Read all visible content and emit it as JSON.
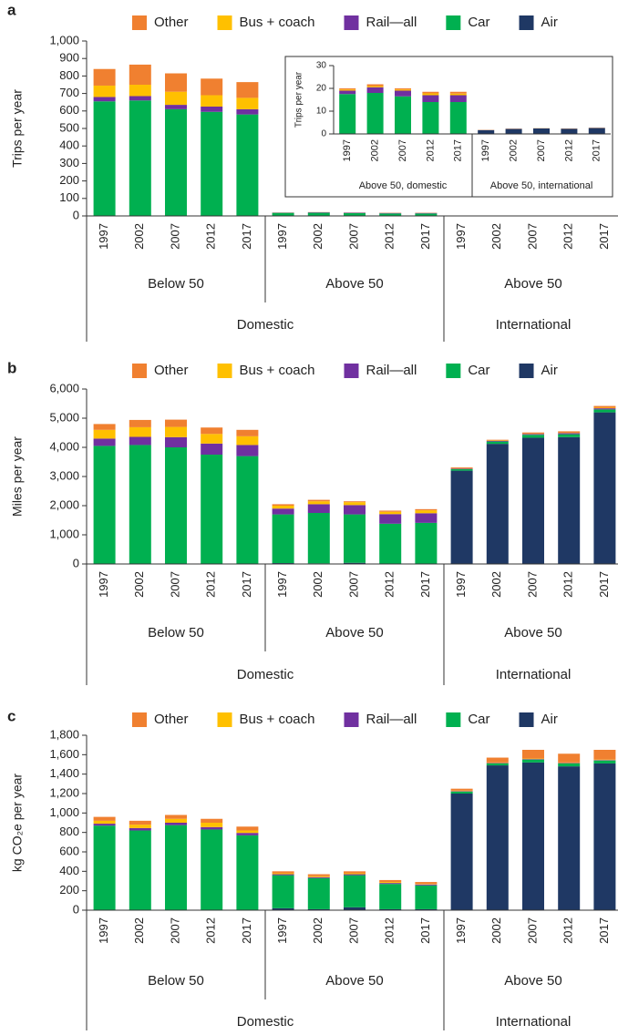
{
  "chart_data": [
    {
      "type": "bar",
      "panel": "a",
      "ylabel": "Trips per year",
      "categories": [
        "1997",
        "2002",
        "2007",
        "2012",
        "2017",
        "1997",
        "2002",
        "2007",
        "2012",
        "2017",
        "1997",
        "2002",
        "2007",
        "2012",
        "2017"
      ],
      "groups": [
        "Below 50",
        "Above 50",
        "Above 50"
      ],
      "supergroups": [
        "Domestic",
        "International"
      ],
      "ylim": [
        0,
        1000
      ],
      "yticks": [
        0,
        100,
        200,
        300,
        400,
        500,
        600,
        700,
        800,
        900,
        {
          "value": 1000,
          "label": "1,000"
        }
      ],
      "series": [
        {
          "name": "Air",
          "color": "#1f3864",
          "values": [
            0,
            0,
            0,
            0,
            0,
            0,
            0,
            0,
            0,
            0,
            1.7,
            2.2,
            2.4,
            2.3,
            2.6
          ]
        },
        {
          "name": "Car",
          "color": "#00b050",
          "values": [
            655,
            660,
            610,
            595,
            580,
            17.5,
            18,
            16.5,
            14,
            14,
            0,
            0,
            0,
            0,
            0
          ]
        },
        {
          "name": "Rail—all",
          "color": "#7030a0",
          "values": [
            25,
            25,
            25,
            30,
            30,
            1.5,
            2.5,
            2.5,
            3,
            3,
            0,
            0,
            0,
            0,
            0
          ]
        },
        {
          "name": "Bus + coach",
          "color": "#ffc000",
          "values": [
            65,
            65,
            75,
            65,
            65,
            0.5,
            0.5,
            0.5,
            0.8,
            0.7,
            0,
            0,
            0,
            0,
            0
          ]
        },
        {
          "name": "Other",
          "color": "#f08030",
          "values": [
            95,
            115,
            105,
            95,
            90,
            0.5,
            0.8,
            0.5,
            0.7,
            0.8,
            0.1,
            0.1,
            0.1,
            0.1,
            0.1
          ]
        }
      ]
    },
    {
      "type": "bar",
      "ylabel": "Trips per year",
      "categories": [
        "1997",
        "2002",
        "2007",
        "2012",
        "2017",
        "1997",
        "2002",
        "2007",
        "2012",
        "2017"
      ],
      "groups": [
        "Above 50, domestic",
        "Above 50, international"
      ],
      "ylim": [
        0,
        30
      ],
      "yticks": [
        0,
        10,
        20,
        30
      ],
      "series": [
        {
          "color": "#1f3864",
          "values": [
            0,
            0,
            0,
            0,
            0,
            1.7,
            2.2,
            2.4,
            2.3,
            2.6
          ]
        },
        {
          "color": "#00b050",
          "values": [
            17.5,
            18,
            16.5,
            14,
            14,
            0,
            0,
            0,
            0,
            0
          ]
        },
        {
          "color": "#7030a0",
          "values": [
            1.5,
            2.5,
            2.5,
            3,
            3,
            0,
            0,
            0,
            0,
            0
          ]
        },
        {
          "color": "#ffc000",
          "values": [
            0.5,
            0.5,
            0.5,
            0.8,
            0.7,
            0,
            0,
            0,
            0,
            0
          ]
        },
        {
          "color": "#f08030",
          "values": [
            0.5,
            0.8,
            0.5,
            0.7,
            0.8,
            0.1,
            0.1,
            0.1,
            0.1,
            0.1
          ]
        }
      ]
    },
    {
      "type": "bar",
      "panel": "b",
      "ylabel": "Miles per year",
      "categories": [
        "1997",
        "2002",
        "2007",
        "2012",
        "2017",
        "1997",
        "2002",
        "2007",
        "2012",
        "2017",
        "1997",
        "2002",
        "2007",
        "2012",
        "2017"
      ],
      "groups": [
        "Below 50",
        "Above 50",
        "Above 50"
      ],
      "supergroups": [
        "Domestic",
        "International"
      ],
      "ylim": [
        0,
        6000
      ],
      "yticks": [
        0,
        {
          "value": 1000,
          "label": "1,000"
        },
        {
          "value": 2000,
          "label": "2,000"
        },
        {
          "value": 3000,
          "label": "3,000"
        },
        {
          "value": 4000,
          "label": "4,000"
        },
        {
          "value": 5000,
          "label": "5,000"
        },
        {
          "value": 6000,
          "label": "6,000"
        }
      ],
      "series": [
        {
          "name": "Air",
          "color": "#1f3864",
          "values": [
            0,
            0,
            0,
            0,
            0,
            30,
            20,
            40,
            10,
            10,
            3200,
            4120,
            4330,
            4350,
            5200
          ]
        },
        {
          "name": "Car",
          "color": "#00b050",
          "values": [
            4050,
            4080,
            4000,
            3750,
            3700,
            1670,
            1730,
            1660,
            1370,
            1400,
            50,
            80,
            100,
            100,
            100
          ]
        },
        {
          "name": "Rail—all",
          "color": "#7030a0",
          "values": [
            250,
            280,
            350,
            380,
            380,
            200,
            300,
            320,
            330,
            330,
            20,
            20,
            30,
            40,
            40
          ]
        },
        {
          "name": "Bus + coach",
          "color": "#ffc000",
          "values": [
            300,
            330,
            350,
            330,
            300,
            100,
            100,
            100,
            80,
            100,
            10,
            10,
            10,
            10,
            20
          ]
        },
        {
          "name": "Other",
          "color": "#f08030",
          "values": [
            200,
            250,
            250,
            220,
            220,
            50,
            50,
            30,
            40,
            40,
            30,
            30,
            40,
            50,
            60
          ]
        }
      ]
    },
    {
      "type": "bar",
      "panel": "c",
      "ylabel": "kg CO₂e per year",
      "categories": [
        "1997",
        "2002",
        "2007",
        "2012",
        "2017",
        "1997",
        "2002",
        "2007",
        "2012",
        "2017",
        "1997",
        "2002",
        "2007",
        "2012",
        "2017"
      ],
      "groups": [
        "Below 50",
        "Above 50",
        "Above 50"
      ],
      "supergroups": [
        "Domestic",
        "International"
      ],
      "ylim": [
        0,
        1800
      ],
      "yticks": [
        0,
        200,
        400,
        600,
        800,
        {
          "value": 1000,
          "label": "1,000"
        },
        {
          "value": 1200,
          "label": "1,200"
        },
        {
          "value": 1400,
          "label": "1,400"
        },
        {
          "value": 1600,
          "label": "1,600"
        },
        {
          "value": 1800,
          "label": "1,800"
        }
      ],
      "series": [
        {
          "name": "Air",
          "color": "#1f3864",
          "values": [
            0,
            0,
            0,
            0,
            0,
            20,
            10,
            30,
            10,
            10,
            1200,
            1490,
            1520,
            1480,
            1510
          ]
        },
        {
          "name": "Car",
          "color": "#00b050",
          "values": [
            870,
            820,
            875,
            830,
            770,
            340,
            320,
            330,
            260,
            245,
            20,
            20,
            30,
            30,
            30
          ]
        },
        {
          "name": "Rail—all",
          "color": "#7030a0",
          "values": [
            20,
            25,
            25,
            25,
            25,
            10,
            10,
            10,
            10,
            10,
            5,
            5,
            5,
            5,
            5
          ]
        },
        {
          "name": "Bus + coach",
          "color": "#ffc000",
          "values": [
            30,
            35,
            40,
            45,
            25,
            10,
            10,
            10,
            10,
            5,
            5,
            5,
            5,
            5,
            5
          ]
        },
        {
          "name": "Other",
          "color": "#f08030",
          "values": [
            40,
            40,
            40,
            40,
            40,
            20,
            20,
            20,
            20,
            20,
            20,
            50,
            90,
            90,
            100
          ]
        }
      ]
    }
  ]
}
